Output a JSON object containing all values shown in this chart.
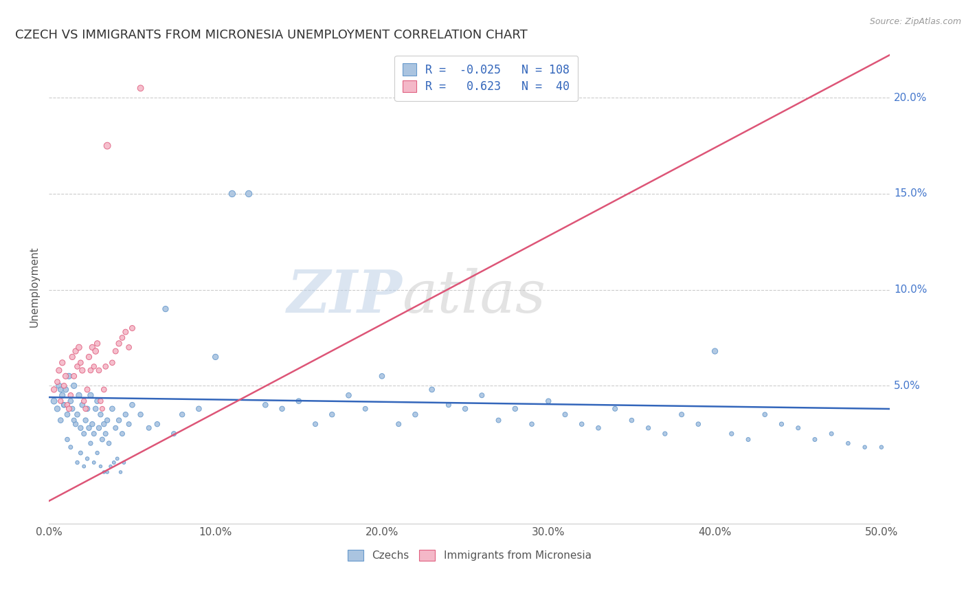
{
  "title": "CZECH VS IMMIGRANTS FROM MICRONESIA UNEMPLOYMENT CORRELATION CHART",
  "source_text": "Source: ZipAtlas.com",
  "ylabel": "Unemployment",
  "xlim": [
    0.0,
    0.505
  ],
  "ylim": [
    -0.022,
    0.225
  ],
  "xtick_vals": [
    0.0,
    0.1,
    0.2,
    0.3,
    0.4,
    0.5
  ],
  "xtick_labels": [
    "0.0%",
    "10.0%",
    "20.0%",
    "30.0%",
    "40.0%",
    "50.0%"
  ],
  "ytick_vals": [
    0.05,
    0.1,
    0.15,
    0.2
  ],
  "ytick_labels": [
    "5.0%",
    "10.0%",
    "15.0%",
    "20.0%"
  ],
  "legend_r_label_0": "R =  -0.025   N = 108",
  "legend_r_label_1": "R =   0.623   N =  40",
  "legend_label_0": "Czechs",
  "legend_label_1": "Immigrants from Micronesia",
  "blue_scatter_color": "#aac4e0",
  "blue_edge_color": "#6699cc",
  "pink_scatter_color": "#f4b8c8",
  "pink_edge_color": "#e06080",
  "blue_line_color": "#3366bb",
  "pink_line_color": "#dd5577",
  "watermark_color": "#c8d8ec",
  "background_color": "#ffffff",
  "grid_color": "#cccccc",
  "title_color": "#333333",
  "axis_label_color": "#555555",
  "right_tick_color": "#4477cc",
  "watermark_text": "ZIPatlas",
  "blue_intercept": 0.044,
  "blue_slope": -0.012,
  "pink_intercept": -0.01,
  "pink_slope": 0.46,
  "blue_x": [
    0.003,
    0.005,
    0.006,
    0.007,
    0.008,
    0.009,
    0.01,
    0.011,
    0.012,
    0.013,
    0.014,
    0.015,
    0.016,
    0.017,
    0.018,
    0.019,
    0.02,
    0.021,
    0.022,
    0.023,
    0.024,
    0.025,
    0.026,
    0.027,
    0.028,
    0.029,
    0.03,
    0.031,
    0.032,
    0.033,
    0.034,
    0.035,
    0.036,
    0.038,
    0.04,
    0.042,
    0.044,
    0.046,
    0.048,
    0.05,
    0.055,
    0.06,
    0.065,
    0.07,
    0.075,
    0.08,
    0.09,
    0.1,
    0.11,
    0.12,
    0.13,
    0.14,
    0.15,
    0.16,
    0.17,
    0.18,
    0.19,
    0.2,
    0.21,
    0.22,
    0.23,
    0.24,
    0.25,
    0.26,
    0.27,
    0.28,
    0.29,
    0.3,
    0.31,
    0.32,
    0.33,
    0.34,
    0.35,
    0.36,
    0.37,
    0.38,
    0.39,
    0.4,
    0.41,
    0.42,
    0.43,
    0.44,
    0.45,
    0.46,
    0.47,
    0.48,
    0.49,
    0.5,
    0.007,
    0.009,
    0.011,
    0.013,
    0.015,
    0.017,
    0.019,
    0.021,
    0.023,
    0.025,
    0.027,
    0.029,
    0.031,
    0.033,
    0.035,
    0.037,
    0.039,
    0.041,
    0.043,
    0.045
  ],
  "blue_y": [
    0.042,
    0.038,
    0.05,
    0.032,
    0.045,
    0.04,
    0.048,
    0.035,
    0.055,
    0.042,
    0.038,
    0.05,
    0.03,
    0.035,
    0.045,
    0.028,
    0.04,
    0.025,
    0.032,
    0.038,
    0.028,
    0.045,
    0.03,
    0.025,
    0.038,
    0.042,
    0.028,
    0.035,
    0.022,
    0.03,
    0.025,
    0.032,
    0.02,
    0.038,
    0.028,
    0.032,
    0.025,
    0.035,
    0.03,
    0.04,
    0.035,
    0.028,
    0.03,
    0.09,
    0.025,
    0.035,
    0.038,
    0.065,
    0.15,
    0.15,
    0.04,
    0.038,
    0.042,
    0.03,
    0.035,
    0.045,
    0.038,
    0.055,
    0.03,
    0.035,
    0.048,
    0.04,
    0.038,
    0.045,
    0.032,
    0.038,
    0.03,
    0.042,
    0.035,
    0.03,
    0.028,
    0.038,
    0.032,
    0.028,
    0.025,
    0.035,
    0.03,
    0.068,
    0.025,
    0.022,
    0.035,
    0.03,
    0.028,
    0.022,
    0.025,
    0.02,
    0.018,
    0.018,
    0.048,
    0.04,
    0.022,
    0.018,
    0.032,
    0.01,
    0.015,
    0.008,
    0.012,
    0.02,
    0.01,
    0.015,
    0.008,
    0.005,
    0.005,
    0.008,
    0.01,
    0.012,
    0.005,
    0.01
  ],
  "blue_sizes": [
    40,
    35,
    35,
    30,
    35,
    30,
    35,
    30,
    35,
    30,
    28,
    35,
    28,
    30,
    35,
    28,
    30,
    25,
    28,
    30,
    28,
    35,
    28,
    25,
    30,
    30,
    28,
    28,
    25,
    28,
    25,
    28,
    22,
    30,
    25,
    28,
    25,
    28,
    25,
    30,
    28,
    25,
    28,
    35,
    25,
    28,
    30,
    35,
    45,
    45,
    30,
    28,
    30,
    25,
    28,
    30,
    25,
    30,
    25,
    28,
    30,
    25,
    28,
    25,
    25,
    28,
    22,
    28,
    25,
    22,
    22,
    25,
    22,
    20,
    20,
    25,
    22,
    35,
    20,
    18,
    22,
    20,
    18,
    18,
    18,
    16,
    15,
    15,
    30,
    25,
    22,
    18,
    25,
    15,
    18,
    12,
    15,
    20,
    12,
    15,
    10,
    10,
    10,
    10,
    12,
    12,
    10,
    12
  ],
  "pink_x": [
    0.003,
    0.005,
    0.006,
    0.007,
    0.008,
    0.009,
    0.01,
    0.011,
    0.012,
    0.013,
    0.014,
    0.015,
    0.016,
    0.017,
    0.018,
    0.019,
    0.02,
    0.021,
    0.022,
    0.023,
    0.024,
    0.025,
    0.026,
    0.027,
    0.028,
    0.029,
    0.03,
    0.031,
    0.032,
    0.033,
    0.034,
    0.035,
    0.038,
    0.04,
    0.042,
    0.044,
    0.046,
    0.048,
    0.05,
    0.055
  ],
  "pink_y": [
    0.048,
    0.052,
    0.058,
    0.042,
    0.062,
    0.05,
    0.055,
    0.04,
    0.038,
    0.045,
    0.065,
    0.055,
    0.068,
    0.06,
    0.07,
    0.062,
    0.058,
    0.042,
    0.038,
    0.048,
    0.065,
    0.058,
    0.07,
    0.06,
    0.068,
    0.072,
    0.058,
    0.042,
    0.038,
    0.048,
    0.06,
    0.175,
    0.062,
    0.068,
    0.072,
    0.075,
    0.078,
    0.07,
    0.08,
    0.205
  ],
  "pink_sizes": [
    35,
    30,
    35,
    28,
    35,
    30,
    35,
    28,
    32,
    30,
    35,
    32,
    35,
    30,
    38,
    30,
    35,
    28,
    30,
    32,
    35,
    30,
    35,
    28,
    38,
    35,
    30,
    28,
    25,
    30,
    30,
    50,
    30,
    32,
    35,
    30,
    32,
    30,
    32,
    40
  ]
}
